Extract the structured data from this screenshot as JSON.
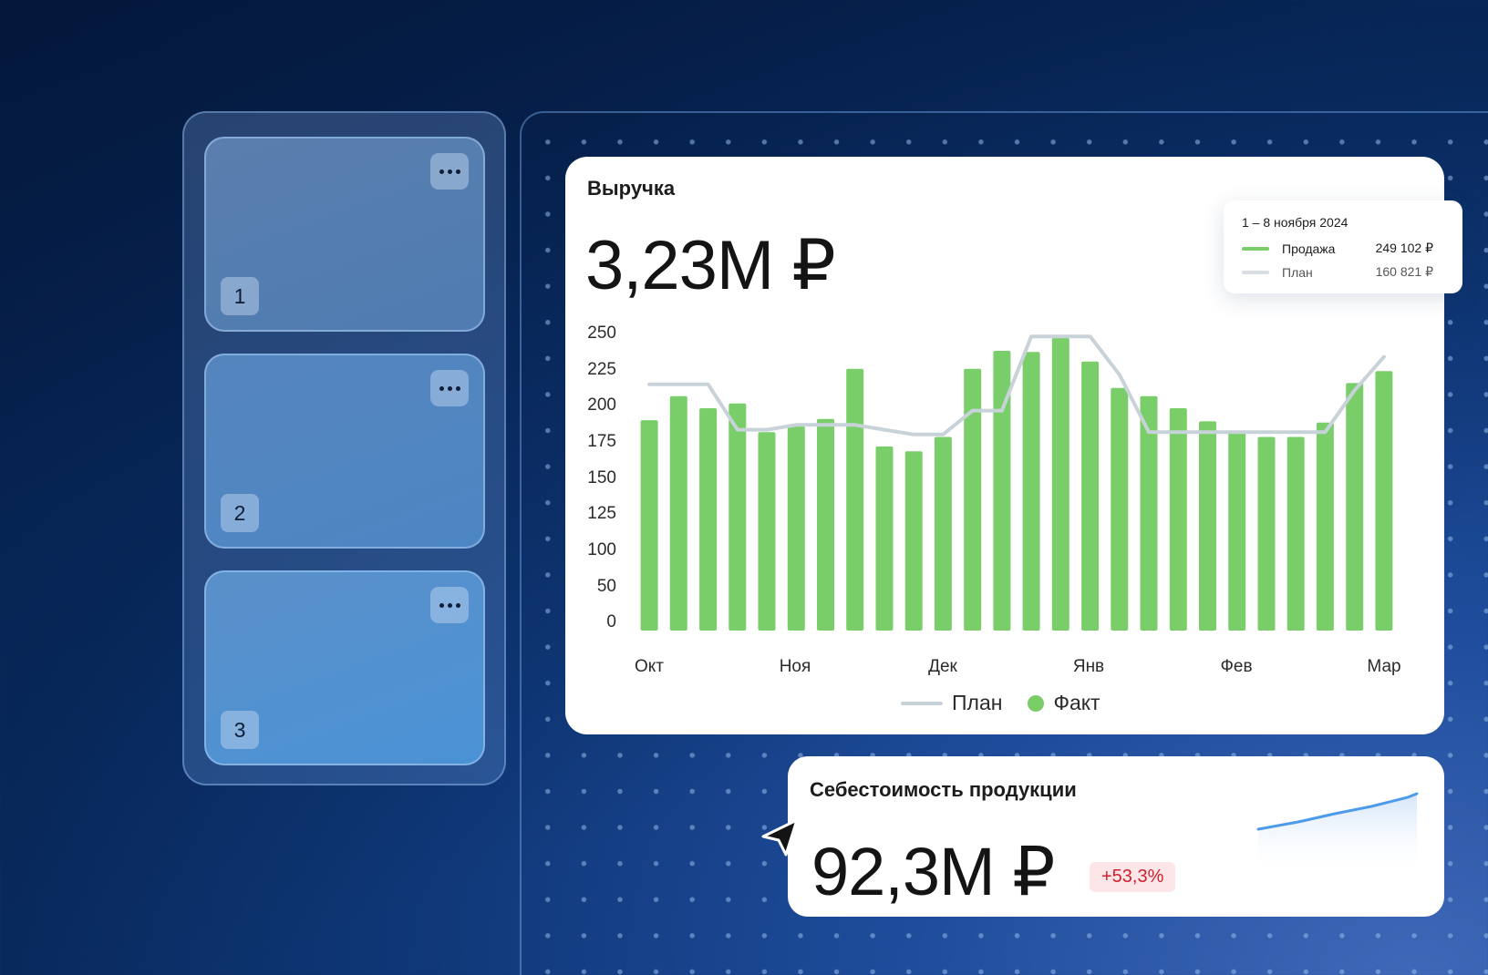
{
  "slots": [
    {
      "number": "1"
    },
    {
      "number": "2"
    },
    {
      "number": "3"
    }
  ],
  "revenue": {
    "title": "Выручка",
    "value": "3,23М ₽"
  },
  "chart_data": {
    "type": "bar",
    "x_labels": [
      "Окт",
      "Ноя",
      "Дек",
      "Янв",
      "Фев",
      "Мар"
    ],
    "y_ticks": [
      "250",
      "225",
      "200",
      "175",
      "150",
      "125",
      "100",
      "50",
      "0"
    ],
    "series": [
      {
        "name": "Факт",
        "kind": "bar",
        "color": "#7ace6a",
        "values": [
          176,
          196,
          186,
          190,
          166,
          171,
          177,
          219,
          154,
          150,
          162,
          219,
          234,
          233,
          245,
          225,
          203,
          196,
          186,
          175,
          167,
          162,
          162,
          174,
          207,
          217
        ]
      },
      {
        "name": "План",
        "kind": "line",
        "color": "#c8d2d9",
        "values": [
          206,
          206,
          206,
          168,
          168,
          172,
          172,
          172,
          168,
          164,
          164,
          184,
          184,
          246,
          246,
          246,
          214,
          166,
          166,
          166,
          166,
          166,
          166,
          166,
          201,
          229
        ]
      }
    ],
    "legend": [
      "План",
      "Факт"
    ],
    "legend_placement": "bottom-center"
  },
  "tooltip": {
    "date": "1 – 8 ноября 2024",
    "rows": [
      {
        "label": "Продажа",
        "value": "249 102 ₽",
        "color": "#7ace6a"
      },
      {
        "label": "План",
        "value": "160 821 ₽",
        "color": "#d9dee2"
      }
    ]
  },
  "cost": {
    "title": "Себестоимость продукции",
    "value": "92,3М ₽",
    "change": "+53,3%"
  },
  "icons": {
    "more": "more-dots-icon",
    "cursor": "cursor-arrow-icon"
  }
}
